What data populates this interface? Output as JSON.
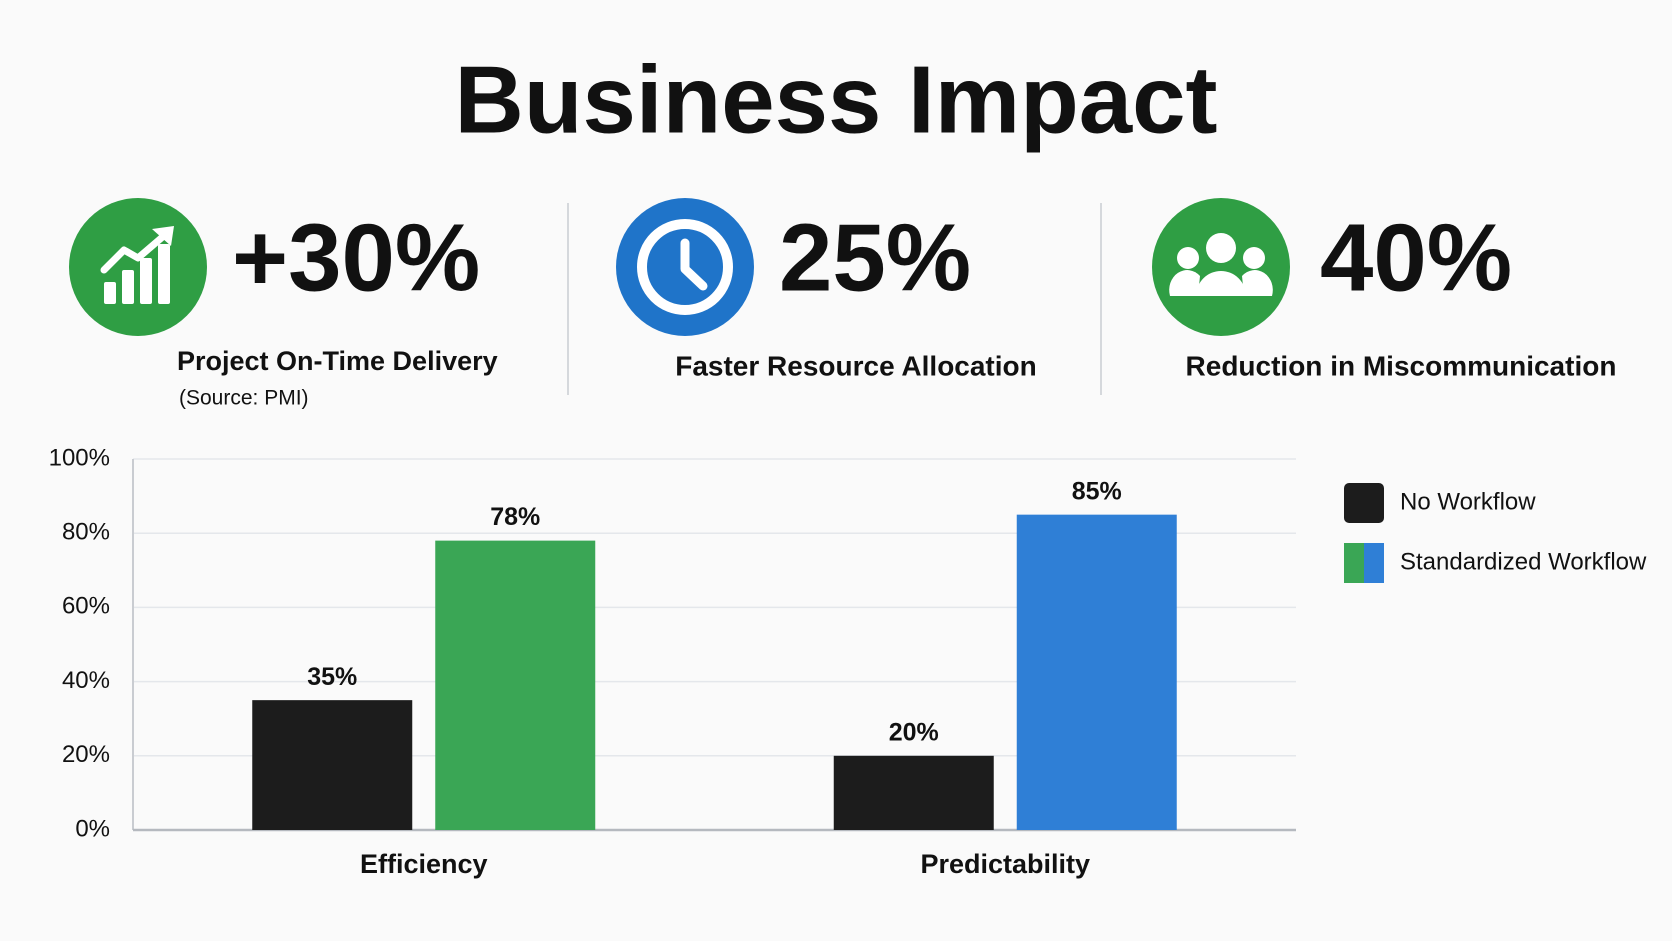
{
  "title": "Business Impact",
  "kpis": [
    {
      "value": "+30%",
      "label": "Project On-Time Delivery",
      "note": "(Source: PMI)"
    },
    {
      "value": "25%",
      "label": "Faster Resource Allocation"
    },
    {
      "value": "40%",
      "label": "Reduction in Miscommunication"
    }
  ],
  "chart_data": {
    "type": "bar",
    "categories": [
      "Efficiency",
      "Predictability"
    ],
    "series": [
      {
        "name": "No Workflow",
        "color": "#1c1c1c",
        "values": [
          35,
          20
        ],
        "value_labels": [
          "35%",
          "20%"
        ]
      },
      {
        "name": "Standardized Workflow",
        "colors": [
          "#3aa655",
          "#2f7fd6"
        ],
        "values": [
          78,
          85
        ],
        "value_labels": [
          "78%",
          "85%"
        ]
      }
    ],
    "ylim": [
      0,
      100
    ],
    "yticks": [
      {
        "value": 0,
        "label": "0%"
      },
      {
        "value": 20,
        "label": "20%"
      },
      {
        "value": 40,
        "label": "40%"
      },
      {
        "value": 60,
        "label": "60%"
      },
      {
        "value": 80,
        "label": "80%"
      },
      {
        "value": 100,
        "label": "100%"
      }
    ],
    "grid": true,
    "legend": "right"
  }
}
